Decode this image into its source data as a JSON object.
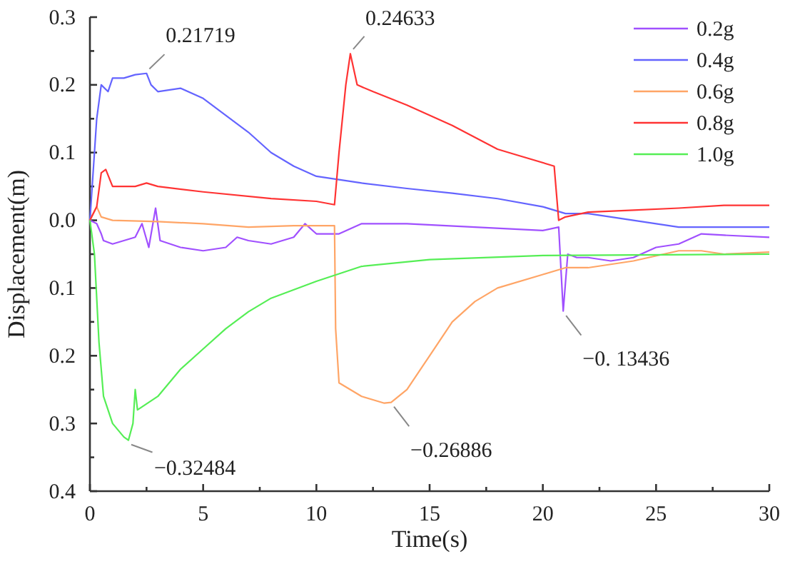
{
  "chart_data": {
    "type": "line",
    "xlabel": "Time(s)",
    "ylabel": "Displacement(m)",
    "xlim": [
      0,
      30
    ],
    "ylim": [
      -0.4,
      0.3
    ],
    "xticks": [
      0,
      {
        "value": 2.5,
        "label": null
      },
      5,
      {
        "value": 7.5,
        "label": null
      },
      10,
      {
        "value": 12.5,
        "label": null
      },
      15,
      {
        "value": 17.5,
        "label": null
      },
      20,
      {
        "value": 22.5,
        "label": null
      },
      25,
      {
        "value": 27.5,
        "label": null
      },
      30
    ],
    "yticks": [
      {
        "value": -0.4,
        "label": "0.4"
      },
      {
        "value": -0.35,
        "label": null
      },
      {
        "value": -0.3,
        "label": "0.3"
      },
      {
        "value": -0.25,
        "label": null
      },
      {
        "value": -0.2,
        "label": "0.2"
      },
      {
        "value": -0.15,
        "label": null
      },
      {
        "value": -0.1,
        "label": "0.1"
      },
      {
        "value": -0.05,
        "label": null
      },
      {
        "value": 0,
        "label": "0.0"
      },
      {
        "value": 0.05,
        "label": null
      },
      {
        "value": 0.1,
        "label": "0.1"
      },
      {
        "value": 0.15,
        "label": null
      },
      {
        "value": 0.2,
        "label": "0.2"
      },
      {
        "value": 0.25,
        "label": null
      },
      {
        "value": 0.3,
        "label": "0.3"
      }
    ],
    "grid": false,
    "legend": "top right",
    "marker": "none",
    "line_style": "solid",
    "series": [
      {
        "name": "0.2g",
        "color": "#a050ff",
        "x": [
          0,
          0.3,
          0.5,
          0.6,
          1,
          1.5,
          2,
          2.3,
          2.6,
          2.9,
          3.1,
          4,
          5,
          6,
          6.5,
          7,
          8,
          9,
          9.5,
          10,
          11,
          12,
          14,
          17,
          20,
          20.7,
          20.9,
          21.1,
          21.5,
          22,
          23,
          24,
          25,
          26,
          27,
          28,
          30
        ],
        "values": [
          0,
          -0.005,
          -0.02,
          -0.03,
          -0.035,
          -0.03,
          -0.025,
          -0.005,
          -0.04,
          0.018,
          -0.03,
          -0.04,
          -0.045,
          -0.04,
          -0.025,
          -0.03,
          -0.035,
          -0.025,
          -0.005,
          -0.02,
          -0.02,
          -0.005,
          -0.005,
          -0.01,
          -0.015,
          -0.01,
          -0.134,
          -0.05,
          -0.055,
          -0.055,
          -0.06,
          -0.055,
          -0.04,
          -0.035,
          -0.02,
          -0.022,
          -0.025
        ]
      },
      {
        "name": "0.4g",
        "color": "#6464ff",
        "x": [
          0,
          0.3,
          0.5,
          0.8,
          1,
          1.5,
          2,
          2.5,
          2.7,
          3,
          4,
          5,
          6,
          7,
          8,
          9,
          10,
          11,
          12,
          14,
          16,
          18,
          20,
          21,
          22,
          24,
          25,
          26,
          30
        ],
        "values": [
          0,
          0.15,
          0.2,
          0.19,
          0.21,
          0.21,
          0.215,
          0.217,
          0.2,
          0.19,
          0.195,
          0.18,
          0.155,
          0.13,
          0.1,
          0.08,
          0.065,
          0.06,
          0.055,
          0.047,
          0.04,
          0.032,
          0.02,
          0.01,
          0.01,
          0,
          -0.005,
          -0.01,
          -0.01
        ]
      },
      {
        "name": "0.6g",
        "color": "#ffa566",
        "x": [
          0,
          0.3,
          0.5,
          1,
          3,
          5,
          7,
          9,
          10.8,
          10.85,
          11,
          11.5,
          12,
          13,
          13.3,
          14,
          15,
          16,
          17,
          18,
          20,
          21,
          22,
          24,
          26,
          27,
          28,
          30
        ],
        "values": [
          0,
          0.02,
          0.005,
          0,
          -0.002,
          -0.005,
          -0.01,
          -0.008,
          -0.008,
          -0.16,
          -0.24,
          -0.25,
          -0.26,
          -0.27,
          -0.26886,
          -0.25,
          -0.2,
          -0.15,
          -0.12,
          -0.1,
          -0.08,
          -0.07,
          -0.07,
          -0.06,
          -0.045,
          -0.045,
          -0.05,
          -0.047
        ]
      },
      {
        "name": "0.8g",
        "color": "#ff3333",
        "x": [
          0,
          0.3,
          0.5,
          0.7,
          1,
          2,
          2.5,
          3,
          5,
          8,
          10,
          10.8,
          11,
          11.3,
          11.5,
          11.8,
          12.5,
          14,
          16,
          18,
          19,
          20.5,
          20.7,
          21,
          22,
          24,
          26,
          28,
          30
        ],
        "values": [
          0,
          0.02,
          0.07,
          0.075,
          0.05,
          0.05,
          0.055,
          0.05,
          0.042,
          0.032,
          0.028,
          0.023,
          0.1,
          0.2,
          0.246,
          0.2,
          0.19,
          0.17,
          0.14,
          0.105,
          0.095,
          0.08,
          0,
          0.005,
          0.012,
          0.015,
          0.018,
          0.022,
          0.022
        ]
      },
      {
        "name": "1.0g",
        "color": "#55ee55",
        "x": [
          0,
          0.2,
          0.4,
          0.6,
          1,
          1.5,
          1.7,
          1.9,
          2,
          2.1,
          3,
          4,
          5,
          6,
          7,
          8,
          10,
          12,
          15,
          20,
          30
        ],
        "values": [
          0,
          -0.05,
          -0.18,
          -0.26,
          -0.3,
          -0.32,
          -0.32484,
          -0.3,
          -0.25,
          -0.28,
          -0.26,
          -0.22,
          -0.19,
          -0.16,
          -0.135,
          -0.115,
          -0.09,
          -0.068,
          -0.058,
          -0.052,
          -0.05
        ]
      }
    ],
    "annotations": [
      {
        "text": "0.21719",
        "x": 2.5,
        "y": 0.21719
      },
      {
        "text": "0.24633",
        "x": 11.5,
        "y": 0.24633
      },
      {
        "text": "−0.32484",
        "x": 1.7,
        "y": -0.32484
      },
      {
        "text": "−0.26886",
        "x": 13.3,
        "y": -0.26886
      },
      {
        "text": "−0. 13436",
        "x": 20.9,
        "y": -0.13436
      }
    ]
  }
}
